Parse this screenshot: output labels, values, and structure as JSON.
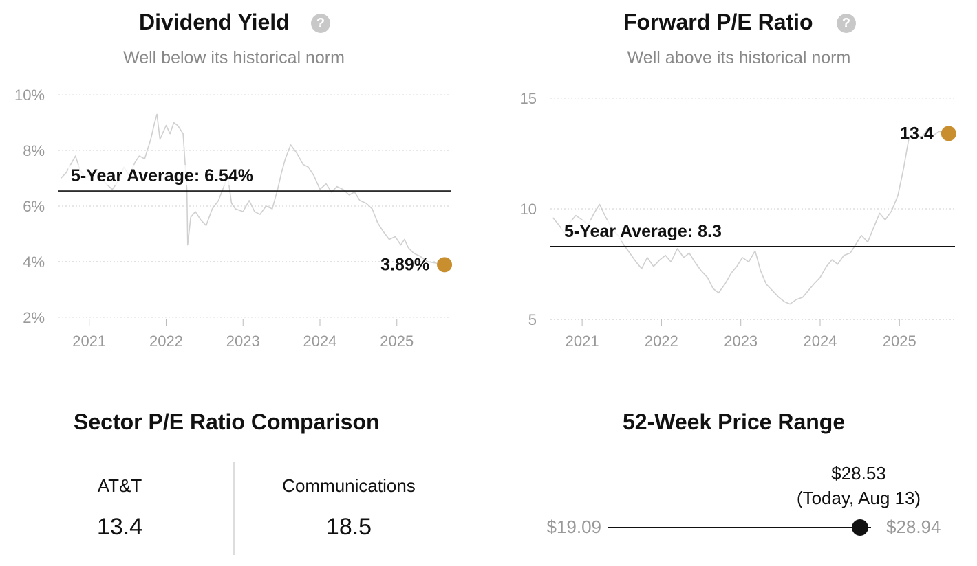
{
  "dividend_panel": {
    "title": "Dividend Yield",
    "subtitle": "Well below its historical norm",
    "help_icon": "question-circle-icon"
  },
  "pe_panel": {
    "title": "Forward P/E Ratio",
    "subtitle": "Well above its historical norm",
    "help_icon": "question-circle-icon"
  },
  "sector": {
    "title": "Sector P/E Ratio Comparison",
    "left_label": "AT&T",
    "left_value": "13.4",
    "right_label": "Communications",
    "right_value": "18.5"
  },
  "range": {
    "title": "52-Week Price Range",
    "low": "$19.09",
    "high": "$28.94",
    "current": "$28.53",
    "current_note": "(Today, Aug 13)",
    "low_value": 19.09,
    "high_value": 28.94,
    "current_value": 28.53
  },
  "chart_data": [
    {
      "type": "line",
      "title": "Dividend Yield",
      "subtitle": "Well below its historical norm",
      "y_ticks": [
        "10%",
        "8%",
        "6%",
        "4%",
        "2%"
      ],
      "y_tick_values": [
        10,
        8,
        6,
        4,
        2
      ],
      "x_ticks": [
        "2021",
        "2022",
        "2023",
        "2024",
        "2025"
      ],
      "x_tick_values": [
        2021,
        2022,
        2023,
        2024,
        2025
      ],
      "xlim": [
        2020.6,
        2025.7
      ],
      "ylim": [
        1.6,
        10.2
      ],
      "grid": true,
      "average": {
        "label": "5-Year Average: 6.54%",
        "value": 6.54
      },
      "current": {
        "label": "3.89%",
        "x": 2025.62,
        "value": 3.89
      },
      "marker_color": "#c98f2f",
      "line_color": "#d0d0d0",
      "series": [
        {
          "x": [
            2020.63,
            2020.7,
            2020.78,
            2020.82,
            2020.88,
            2020.95,
            2021.0,
            2021.08,
            2021.15,
            2021.22,
            2021.3,
            2021.38,
            2021.45,
            2021.52,
            2021.6,
            2021.65,
            2021.72,
            2021.8,
            2021.85,
            2021.88,
            2021.92,
            2022.0,
            2022.05,
            2022.1,
            2022.15,
            2022.22,
            2022.27,
            2022.28,
            2022.32,
            2022.38,
            2022.45,
            2022.52,
            2022.6,
            2022.68,
            2022.75,
            2022.8,
            2022.85,
            2022.9,
            2023.0,
            2023.08,
            2023.15,
            2023.22,
            2023.3,
            2023.38,
            2023.45,
            2023.5,
            2023.55,
            2023.62,
            2023.7,
            2023.78,
            2023.85,
            2023.92,
            2024.0,
            2024.08,
            2024.15,
            2024.22,
            2024.3,
            2024.38,
            2024.45,
            2024.52,
            2024.6,
            2024.68,
            2024.75,
            2024.82,
            2024.9,
            2024.98,
            2025.05,
            2025.1,
            2025.15,
            2025.22,
            2025.3,
            2025.4,
            2025.5,
            2025.62
          ],
          "y": [
            7.0,
            7.2,
            7.6,
            7.8,
            7.3,
            7.0,
            7.1,
            7.3,
            7.0,
            6.8,
            6.6,
            6.9,
            7.4,
            7.1,
            7.6,
            7.8,
            7.7,
            8.4,
            9.0,
            9.3,
            8.4,
            8.9,
            8.6,
            9.0,
            8.9,
            8.6,
            6.6,
            4.6,
            5.6,
            5.8,
            5.5,
            5.3,
            5.9,
            6.2,
            6.7,
            7.1,
            6.1,
            5.9,
            5.8,
            6.2,
            5.8,
            5.7,
            6.0,
            5.9,
            6.6,
            7.2,
            7.7,
            8.2,
            7.9,
            7.5,
            7.4,
            7.1,
            6.6,
            6.8,
            6.5,
            6.7,
            6.6,
            6.4,
            6.5,
            6.2,
            6.1,
            5.9,
            5.4,
            5.1,
            4.8,
            4.9,
            4.6,
            4.8,
            4.5,
            4.3,
            4.2,
            4.0,
            3.95,
            3.89
          ]
        }
      ]
    },
    {
      "type": "line",
      "title": "Forward P/E Ratio",
      "subtitle": "Well above its historical norm",
      "y_ticks": [
        "15",
        "10",
        "5"
      ],
      "y_tick_values": [
        15,
        10,
        5
      ],
      "x_ticks": [
        "2021",
        "2022",
        "2023",
        "2024",
        "2025"
      ],
      "x_tick_values": [
        2021,
        2022,
        2023,
        2024,
        2025
      ],
      "xlim": [
        2020.6,
        2025.7
      ],
      "ylim": [
        4.6,
        15.4
      ],
      "grid": true,
      "average": {
        "label": "5-Year Average: 8.3",
        "value": 8.3
      },
      "current": {
        "label": "13.4",
        "x": 2025.62,
        "value": 13.4
      },
      "marker_color": "#c98f2f",
      "line_color": "#d0d0d0",
      "series": [
        {
          "x": [
            2020.63,
            2020.7,
            2020.78,
            2020.85,
            2020.92,
            2021.0,
            2021.08,
            2021.15,
            2021.22,
            2021.3,
            2021.38,
            2021.45,
            2021.52,
            2021.6,
            2021.68,
            2021.75,
            2021.82,
            2021.9,
            2021.98,
            2022.05,
            2022.12,
            2022.2,
            2022.28,
            2022.35,
            2022.42,
            2022.5,
            2022.58,
            2022.65,
            2022.72,
            2022.8,
            2022.88,
            2022.95,
            2023.02,
            2023.1,
            2023.18,
            2023.25,
            2023.32,
            2023.4,
            2023.48,
            2023.55,
            2023.62,
            2023.7,
            2023.78,
            2023.85,
            2023.92,
            2024.0,
            2024.08,
            2024.15,
            2024.22,
            2024.3,
            2024.38,
            2024.45,
            2024.52,
            2024.6,
            2024.68,
            2024.75,
            2024.82,
            2024.9,
            2024.98,
            2025.05,
            2025.12,
            2025.2,
            2025.28,
            2025.35,
            2025.42,
            2025.5,
            2025.62
          ],
          "y": [
            9.6,
            9.3,
            8.9,
            9.4,
            9.7,
            9.5,
            9.3,
            9.8,
            10.2,
            9.6,
            9.1,
            8.8,
            8.4,
            8.0,
            7.6,
            7.3,
            7.8,
            7.4,
            7.7,
            7.9,
            7.6,
            8.2,
            7.8,
            8.0,
            7.6,
            7.2,
            6.9,
            6.4,
            6.2,
            6.6,
            7.1,
            7.4,
            7.8,
            7.6,
            8.1,
            7.2,
            6.6,
            6.3,
            6.0,
            5.8,
            5.7,
            5.9,
            6.0,
            6.3,
            6.6,
            6.9,
            7.4,
            7.7,
            7.5,
            7.9,
            8.0,
            8.4,
            8.8,
            8.5,
            9.2,
            9.8,
            9.5,
            9.9,
            10.6,
            11.8,
            13.2,
            13.4,
            13.2,
            13.6,
            13.3,
            13.5,
            13.4
          ]
        }
      ]
    }
  ]
}
